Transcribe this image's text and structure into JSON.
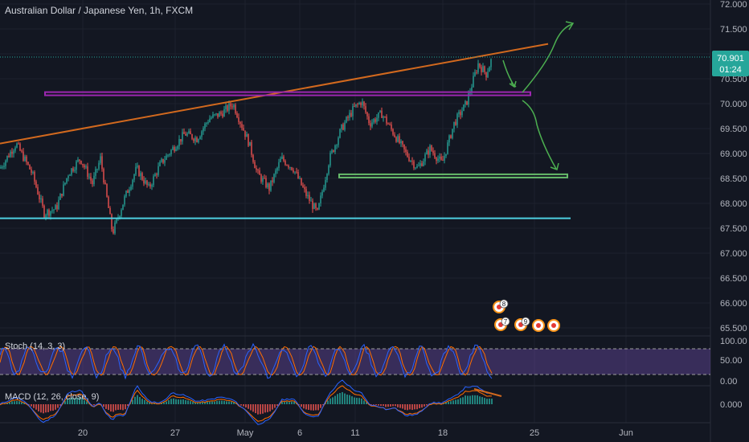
{
  "header": {
    "title": "Australian Dollar / Japanese Yen, 1h, FXCM"
  },
  "price_badge": {
    "value": "70.901",
    "countdown": "01:24"
  },
  "price_axis": {
    "ticks": [
      "72.000",
      "71.500",
      "71.000",
      "70.500",
      "70.000",
      "69.500",
      "69.000",
      "68.500",
      "68.000",
      "67.500",
      "67.000",
      "66.500",
      "66.000",
      "65.500"
    ]
  },
  "time_axis": {
    "ticks": [
      "20",
      "27",
      "May",
      "6",
      "11",
      "18",
      "25",
      "Jun"
    ]
  },
  "stoch": {
    "label": "Stoch (14, 3, 3)",
    "ticks": [
      "100.00",
      "50.00",
      "0.00"
    ],
    "bands": [
      80,
      20
    ]
  },
  "macd": {
    "label": "MACD (12, 26, close, 9)",
    "ticks": [
      "0.000"
    ]
  },
  "event_markers": [
    {
      "label": "8",
      "color": "#f7931a"
    },
    {
      "label": "7",
      "color": "#f7931a"
    },
    {
      "label": "9",
      "color": "#f7931a"
    },
    {
      "label": "",
      "color": "#f7931a"
    },
    {
      "label": "",
      "color": "#f7931a"
    }
  ],
  "colors": {
    "background": "#131722",
    "trendline": "#d2691e",
    "resistance": "#9c27b0",
    "support_upper": "#66bb6a",
    "support_lower": "#4dd0e1",
    "projection": "#4caf50",
    "up_candle": "#26a69a",
    "down_candle": "#ef5350",
    "stoch_k": "#2962ff",
    "stoch_d": "#ff6d00",
    "stoch_band": "#7e57c2"
  },
  "chart_data": {
    "type": "candlestick",
    "symbol": "AUDJPY",
    "timeframe": "1h",
    "ylim": [
      65.4,
      72.05
    ],
    "price_path": [
      [
        0,
        68.7
      ],
      [
        20,
        69.2
      ],
      [
        40,
        68.6
      ],
      [
        55,
        67.8
      ],
      [
        70,
        67.9
      ],
      [
        85,
        68.6
      ],
      [
        100,
        68.9
      ],
      [
        115,
        68.4
      ],
      [
        125,
        68.9
      ],
      [
        140,
        67.4
      ],
      [
        155,
        68.1
      ],
      [
        170,
        68.7
      ],
      [
        185,
        68.3
      ],
      [
        200,
        68.8
      ],
      [
        215,
        69.1
      ],
      [
        230,
        69.4
      ],
      [
        245,
        69.3
      ],
      [
        260,
        69.7
      ],
      [
        275,
        69.8
      ],
      [
        290,
        70.0
      ],
      [
        300,
        69.6
      ],
      [
        310,
        69.2
      ],
      [
        320,
        68.6
      ],
      [
        335,
        68.3
      ],
      [
        350,
        68.9
      ],
      [
        365,
        68.7
      ],
      [
        380,
        68.2
      ],
      [
        395,
        67.8
      ],
      [
        410,
        68.9
      ],
      [
        425,
        69.5
      ],
      [
        440,
        69.9
      ],
      [
        450,
        70.05
      ],
      [
        460,
        69.6
      ],
      [
        475,
        69.8
      ],
      [
        490,
        69.4
      ],
      [
        505,
        69.0
      ],
      [
        520,
        68.7
      ],
      [
        535,
        69.1
      ],
      [
        550,
        68.8
      ],
      [
        565,
        69.6
      ],
      [
        580,
        70.0
      ],
      [
        595,
        70.8
      ],
      [
        605,
        70.6
      ],
      [
        612,
        70.9
      ]
    ],
    "annotations": {
      "trendline": {
        "from": 69.2,
        "to": 71.2
      },
      "resistance_level": 70.2,
      "support_level_upper": 68.55,
      "support_level_lower": 67.7
    }
  }
}
